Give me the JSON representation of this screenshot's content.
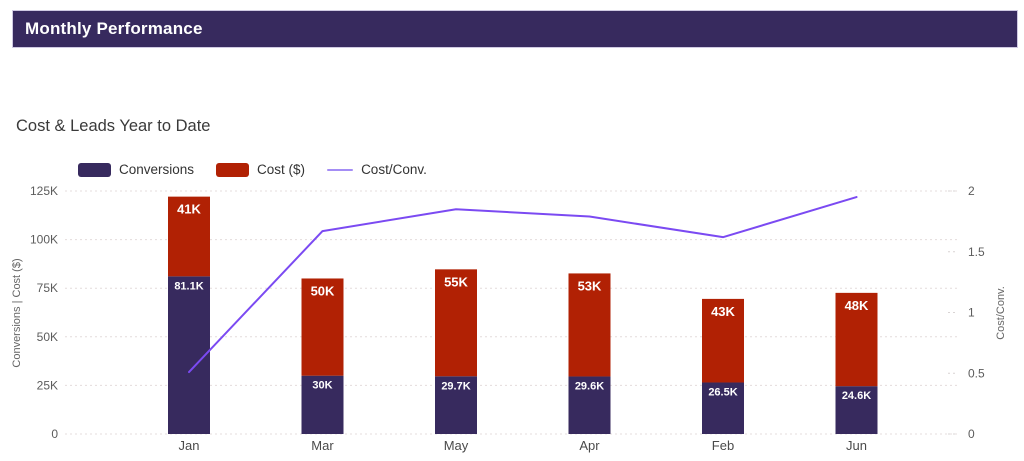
{
  "header": {
    "title": "Monthly Performance"
  },
  "section": {
    "title": "Cost & Leads Year to Date"
  },
  "legend": [
    {
      "label": "Conversions",
      "type": "bar",
      "color": "#372a5e"
    },
    {
      "label": "Cost ($)",
      "type": "bar",
      "color": "#b12104"
    },
    {
      "label": "Cost/Conv.",
      "type": "line",
      "color": "#a48df5"
    }
  ],
  "chart_data": {
    "type": "bar",
    "subtype": "stacked-bar-with-line",
    "title": "Cost & Leads Year to Date",
    "categories": [
      "Jan",
      "Mar",
      "May",
      "Apr",
      "Feb",
      "Jun"
    ],
    "series": [
      {
        "name": "Conversions",
        "type": "bar",
        "stack": true,
        "color": "#372a5e",
        "values": [
          81100,
          30000,
          29700,
          29600,
          26500,
          24600
        ],
        "value_labels": [
          "81.1K",
          "30K",
          "29.7K",
          "29.6K",
          "26.5K",
          "24.6K"
        ]
      },
      {
        "name": "Cost ($)",
        "type": "bar",
        "stack": true,
        "color": "#b12104",
        "values": [
          41000,
          50000,
          55000,
          53000,
          43000,
          48000
        ],
        "value_labels": [
          "41K",
          "50K",
          "55K",
          "53K",
          "43K",
          "48K"
        ]
      },
      {
        "name": "Cost/Conv.",
        "type": "line",
        "color": "#7b4af2",
        "axis": "right",
        "values": [
          0.51,
          1.67,
          1.85,
          1.79,
          1.62,
          1.95
        ]
      }
    ],
    "left_axis": {
      "label": "Conversions | Cost ($)",
      "tick_values": [
        0,
        25000,
        50000,
        75000,
        100000,
        125000
      ],
      "tick_labels": [
        "0",
        "25K",
        "50K",
        "75K",
        "100K",
        "125K"
      ],
      "max": 125000
    },
    "right_axis": {
      "label": "Cost/Conv.",
      "tick_values": [
        0,
        0.5,
        1,
        1.5,
        2
      ],
      "tick_labels": [
        "0",
        "0.5",
        "1",
        "1.5",
        "2"
      ],
      "max": 2
    },
    "grid": true,
    "legend_position": "top"
  }
}
